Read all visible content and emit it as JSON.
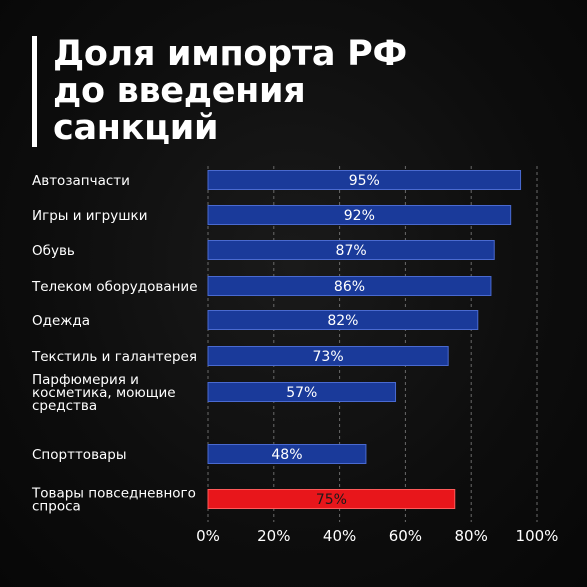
{
  "title_lines": [
    "Доля импорта РФ",
    "до введения",
    "санкций"
  ],
  "colors": {
    "bar": "#1a3a9a",
    "bar_border": "#4a6ad0",
    "highlight": "#e8161b",
    "highlight_border": "#ff5a5a",
    "text": "#ffffff",
    "highlight_text": "#1a1a1a",
    "grid": "#6a6a6a"
  },
  "chart_data": {
    "type": "bar",
    "orientation": "horizontal",
    "title": "Доля импорта РФ до введения санкций",
    "categories": [
      [
        "Автозапчасти"
      ],
      [
        "Игры и игрушки"
      ],
      [
        "Обувь"
      ],
      [
        "Телеком оборудование"
      ],
      [
        "Одежда"
      ],
      [
        "Текстиль и галантерея"
      ],
      [
        "Парфюмерия и",
        "косметика, моющие",
        "средства"
      ],
      [
        "Спорттовары"
      ],
      [
        "Товары повседневного",
        "спроса"
      ]
    ],
    "values": [
      95,
      92,
      87,
      86,
      82,
      73,
      57,
      48,
      75
    ],
    "value_labels": [
      "95%",
      "92%",
      "87%",
      "86%",
      "82%",
      "73%",
      "57%",
      "48%",
      "75%"
    ],
    "highlight_index": 8,
    "xlim": [
      0,
      100
    ],
    "x_ticks": [
      0,
      20,
      40,
      60,
      80,
      100
    ],
    "x_tick_labels": [
      "0%",
      "20%",
      "40%",
      "60%",
      "80%",
      "100%"
    ],
    "grid": "vertical dashed"
  }
}
